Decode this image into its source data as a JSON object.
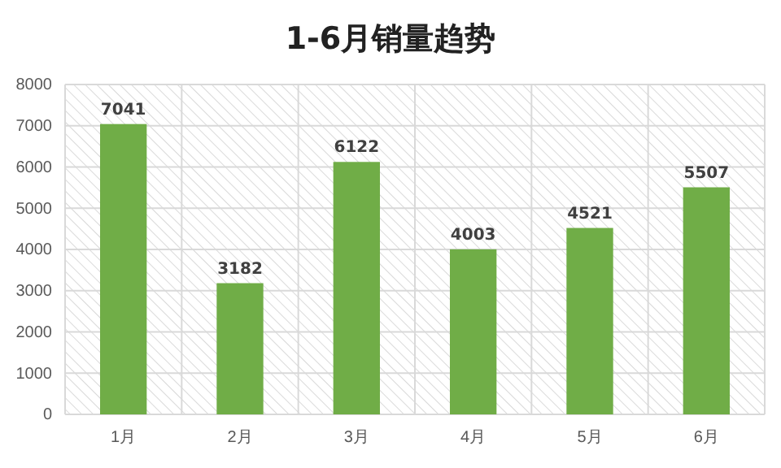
{
  "chart_data": {
    "type": "bar",
    "title": "1-6月销量趋势",
    "categories": [
      "1月",
      "2月",
      "3月",
      "4月",
      "5月",
      "6月"
    ],
    "values": [
      7041,
      3182,
      6122,
      4003,
      4521,
      5507
    ],
    "color": "#70ad47",
    "ylim": [
      0,
      8000
    ],
    "yticks": [
      0,
      1000,
      2000,
      3000,
      4000,
      5000,
      6000,
      7000,
      8000
    ],
    "grid": true,
    "data_labels": true
  }
}
